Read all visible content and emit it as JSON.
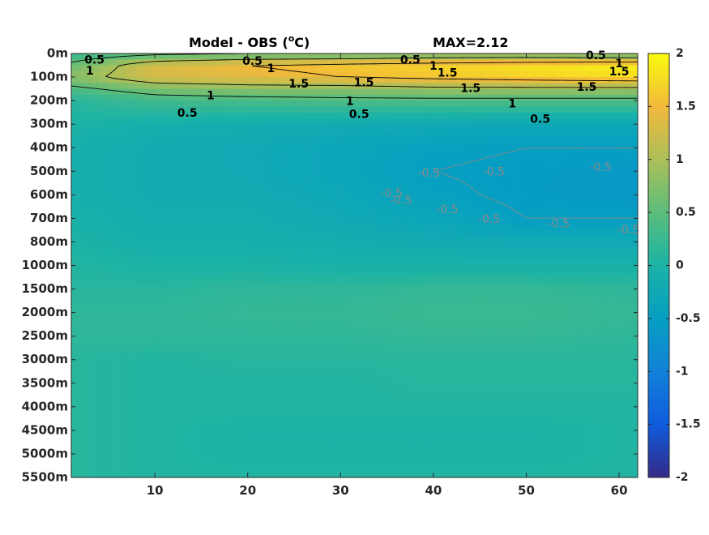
{
  "chart_data": {
    "type": "heatmap",
    "title": "Model - OBS (",
    "title_superscript": "o",
    "title_suffix": "C)",
    "max_label": "MAX=2.12",
    "xlabel": "",
    "ylabel": "",
    "x_range": [
      1,
      62
    ],
    "x_ticks": [
      {
        "value": 10,
        "label": "10"
      },
      {
        "value": 20,
        "label": "20"
      },
      {
        "value": 30,
        "label": "30"
      },
      {
        "value": 40,
        "label": "40"
      },
      {
        "value": 50,
        "label": "50"
      },
      {
        "value": 60,
        "label": "60"
      }
    ],
    "depth_levels": [
      "0m",
      "100m",
      "200m",
      "300m",
      "400m",
      "500m",
      "600m",
      "700m",
      "800m",
      "1000m",
      "1500m",
      "2000m",
      "2500m",
      "3000m",
      "3500m",
      "4000m",
      "4500m",
      "5000m",
      "5500m"
    ],
    "colorbar": {
      "min": -2,
      "max": 2,
      "ticks": [
        "2",
        "1.5",
        "1",
        "0.5",
        "0",
        "-0.5",
        "-1",
        "-1.5",
        "-2"
      ],
      "colormap": "parula"
    },
    "field_samples": {
      "x": [
        1,
        10,
        20,
        30,
        40,
        50,
        62
      ],
      "depth_index": [
        0,
        0.5,
        1,
        1.5,
        2,
        3,
        4,
        5,
        6,
        7,
        8,
        9,
        10,
        11,
        12,
        13,
        14,
        15,
        16,
        17,
        18
      ],
      "values": [
        [
          0.2,
          0.4,
          0.5,
          0.5,
          0.6,
          0.6,
          0.5
        ],
        [
          0.6,
          1.3,
          1.5,
          1.6,
          1.7,
          1.8,
          1.9
        ],
        [
          0.8,
          1.3,
          1.4,
          1.5,
          1.6,
          1.7,
          1.8
        ],
        [
          0.4,
          0.7,
          0.8,
          0.8,
          0.9,
          0.9,
          0.9
        ],
        [
          0.1,
          0.3,
          0.35,
          0.4,
          0.4,
          0.4,
          0.4
        ],
        [
          0.0,
          -0.1,
          -0.15,
          -0.2,
          -0.25,
          -0.3,
          -0.3
        ],
        [
          -0.1,
          -0.2,
          -0.25,
          -0.35,
          -0.45,
          -0.5,
          -0.5
        ],
        [
          -0.1,
          -0.2,
          -0.25,
          -0.35,
          -0.5,
          -0.55,
          -0.6
        ],
        [
          -0.1,
          -0.2,
          -0.2,
          -0.3,
          -0.45,
          -0.55,
          -0.6
        ],
        [
          -0.05,
          -0.15,
          -0.15,
          -0.25,
          -0.35,
          -0.5,
          -0.5
        ],
        [
          0.0,
          -0.1,
          -0.1,
          -0.15,
          -0.2,
          -0.25,
          -0.25
        ],
        [
          0.05,
          0.0,
          0.0,
          -0.05,
          -0.05,
          -0.05,
          -0.05
        ],
        [
          0.1,
          0.1,
          0.15,
          0.15,
          0.2,
          0.2,
          0.15
        ],
        [
          0.15,
          0.15,
          0.2,
          0.2,
          0.25,
          0.25,
          0.2
        ],
        [
          0.15,
          0.15,
          0.15,
          0.15,
          0.2,
          0.2,
          0.15
        ],
        [
          0.1,
          0.05,
          0.1,
          0.1,
          0.1,
          0.1,
          0.1
        ],
        [
          0.1,
          0.05,
          0.05,
          0.05,
          0.1,
          0.1,
          0.1
        ],
        [
          0.1,
          0.05,
          0.05,
          0.05,
          0.05,
          0.05,
          0.05
        ],
        [
          0.1,
          0.05,
          0.0,
          0.0,
          0.0,
          0.0,
          0.05
        ],
        [
          0.1,
          0.05,
          0.0,
          0.0,
          0.0,
          0.0,
          0.05
        ],
        [
          0.1,
          0.05,
          0.05,
          0.05,
          0.05,
          0.05,
          0.05
        ]
      ]
    },
    "contour_labels": [
      {
        "text": "0.5",
        "x": 3.5,
        "depth_index": 0.3,
        "style": "black"
      },
      {
        "text": "1",
        "x": 3.0,
        "depth_index": 0.75,
        "style": "black"
      },
      {
        "text": "0.5",
        "x": 20.5,
        "depth_index": 0.35,
        "style": "black"
      },
      {
        "text": "1",
        "x": 22.5,
        "depth_index": 0.65,
        "style": "black"
      },
      {
        "text": "1.5",
        "x": 25.5,
        "depth_index": 1.3,
        "style": "black"
      },
      {
        "text": "1",
        "x": 16.0,
        "depth_index": 1.8,
        "style": "black"
      },
      {
        "text": "0.5",
        "x": 13.5,
        "depth_index": 2.55,
        "style": "black"
      },
      {
        "text": "1.5",
        "x": 32.5,
        "depth_index": 1.25,
        "style": "black"
      },
      {
        "text": "1",
        "x": 31.0,
        "depth_index": 2.05,
        "style": "black"
      },
      {
        "text": "0.5",
        "x": 32.0,
        "depth_index": 2.6,
        "style": "black"
      },
      {
        "text": "0.5",
        "x": 37.5,
        "depth_index": 0.3,
        "style": "black"
      },
      {
        "text": "1",
        "x": 40.0,
        "depth_index": 0.55,
        "style": "black"
      },
      {
        "text": "1.5",
        "x": 41.5,
        "depth_index": 0.85,
        "style": "black"
      },
      {
        "text": "1.5",
        "x": 44.0,
        "depth_index": 1.5,
        "style": "black"
      },
      {
        "text": "1",
        "x": 48.5,
        "depth_index": 2.15,
        "style": "black"
      },
      {
        "text": "0.5",
        "x": 51.5,
        "depth_index": 2.8,
        "style": "black"
      },
      {
        "text": "0.5",
        "x": 57.5,
        "depth_index": 0.1,
        "style": "black"
      },
      {
        "text": "1",
        "x": 60.0,
        "depth_index": 0.45,
        "style": "black"
      },
      {
        "text": "1.5",
        "x": 60.0,
        "depth_index": 0.8,
        "style": "black"
      },
      {
        "text": "1.5",
        "x": 56.5,
        "depth_index": 1.45,
        "style": "black"
      },
      {
        "text": "-0.5",
        "x": 39.5,
        "depth_index": 5.1,
        "style": "gray"
      },
      {
        "text": "-0.5",
        "x": 46.5,
        "depth_index": 5.05,
        "style": "gray"
      },
      {
        "text": "-0.5",
        "x": 58.0,
        "depth_index": 4.85,
        "style": "gray"
      },
      {
        "text": "-0.5",
        "x": 35.5,
        "depth_index": 5.95,
        "style": "gray"
      },
      {
        "text": "-0.5",
        "x": 36.5,
        "depth_index": 6.25,
        "style": "gray"
      },
      {
        "text": "-0.5",
        "x": 41.5,
        "depth_index": 6.65,
        "style": "gray"
      },
      {
        "text": "-0.5",
        "x": 46.0,
        "depth_index": 7.05,
        "style": "gray"
      },
      {
        "text": "-0.5",
        "x": 53.5,
        "depth_index": 7.25,
        "style": "gray"
      },
      {
        "text": "-0.5",
        "x": 61.0,
        "depth_index": 7.5,
        "style": "gray"
      }
    ]
  }
}
